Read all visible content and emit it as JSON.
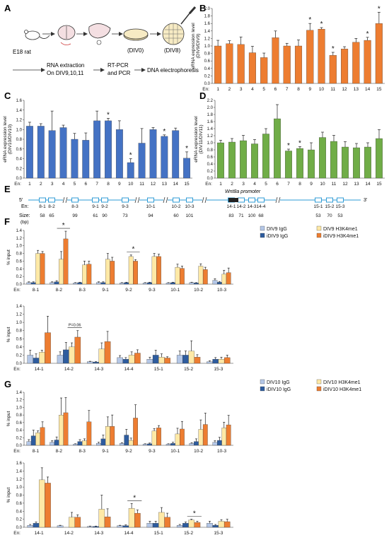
{
  "colors": {
    "orange": "#ED7D31",
    "blue": "#4472C4",
    "green": "#70AD47",
    "light_blue": "#B4C7E7",
    "dark_blue": "#2E5C9E",
    "light_yellow": "#FFE9A6",
    "enhancer_box": "#2E9BD6"
  },
  "panel_letters": [
    "A",
    "B",
    "C",
    "D",
    "E",
    "F",
    "G"
  ],
  "panel_a": {
    "labels": {
      "e18": "E18 rat",
      "div0": "(DIV0)",
      "div8": "(DIV8)",
      "rna1": "RNA extraction",
      "rna2": "On DIV9,10,11",
      "rtpcr1": "RT-PCR",
      "rtpcr2": "and PCR",
      "dna": "DNA electrophoresis"
    },
    "icons": [
      "rat-icon",
      "brain-icon",
      "cortex-icon",
      "dish-icon",
      "plate-icon",
      "pipette-icon"
    ]
  },
  "panel_e": {
    "five_prime": "5'",
    "three_prime": "3'",
    "promoter": "Wnt8a promoter",
    "en_label": "En:",
    "size_label": "Size:",
    "size_unit": "(bp)",
    "enhancers": [
      "8-1",
      "8-2",
      "8-3",
      "9-1",
      "9-2",
      "9-3",
      "10-1",
      "10-2",
      "10-3",
      "14-1",
      "14-2",
      "14-3",
      "14-4",
      "15-1",
      "15-2",
      "15-3"
    ],
    "sizes": [
      "58",
      "65",
      "99",
      "61",
      "90",
      "73",
      "94",
      "60",
      "101",
      "83",
      "71",
      "100",
      "68",
      "53",
      "70",
      "53"
    ]
  },
  "chart_data": [
    {
      "id": "B",
      "type": "bar",
      "ylabel": "eRNA expression level\n(DIV9/DIV9)",
      "ylim": [
        0,
        2.0
      ],
      "xprefix": "En:",
      "color": "orange",
      "categories": [
        "1",
        "2",
        "3",
        "4",
        "5",
        "6",
        "7",
        "8",
        "9",
        "10",
        "11",
        "12",
        "13",
        "14",
        "15"
      ],
      "values": [
        1.0,
        1.06,
        1.04,
        0.82,
        0.69,
        1.22,
        1.0,
        1.0,
        1.42,
        1.45,
        0.75,
        0.92,
        1.1,
        1.15,
        1.6
      ],
      "errors": [
        0.15,
        0.08,
        0.2,
        0.17,
        0.12,
        0.18,
        0.07,
        0.16,
        0.18,
        0.04,
        0.08,
        0.06,
        0.1,
        0.08,
        0.3
      ],
      "significant": [
        false,
        false,
        false,
        false,
        false,
        false,
        false,
        false,
        true,
        true,
        true,
        false,
        false,
        true,
        true
      ]
    },
    {
      "id": "C",
      "type": "bar",
      "ylabel": "eRNA expression level\n(DIV10/DIV10)",
      "ylim": [
        0,
        1.6
      ],
      "xprefix": "En:",
      "color": "blue",
      "categories": [
        "1",
        "2",
        "3",
        "4",
        "5",
        "6",
        "7",
        "8",
        "9",
        "10",
        "11",
        "12",
        "13",
        "14",
        "15"
      ],
      "values": [
        1.07,
        1.07,
        0.98,
        1.04,
        0.8,
        0.78,
        1.18,
        1.18,
        1.0,
        0.32,
        0.72,
        1.0,
        0.86,
        0.98,
        0.41
      ],
      "errors": [
        0.08,
        0.05,
        0.4,
        0.05,
        0.12,
        0.15,
        0.2,
        0.05,
        0.18,
        0.08,
        0.3,
        0.04,
        0.03,
        0.05,
        0.13
      ],
      "significant": [
        false,
        false,
        false,
        false,
        false,
        false,
        false,
        true,
        false,
        true,
        false,
        false,
        true,
        false,
        true
      ]
    },
    {
      "id": "D",
      "type": "bar",
      "ylabel": "eRNA expression level\n(DIV11/DIV11)",
      "ylim": [
        0,
        2.2
      ],
      "xprefix": "En:",
      "color": "green",
      "categories": [
        "1",
        "2",
        "3",
        "4",
        "5",
        "6",
        "7",
        "8",
        "9",
        "10",
        "11",
        "12",
        "13",
        "14",
        "15"
      ],
      "values": [
        1.0,
        1.02,
        1.06,
        0.97,
        1.25,
        1.68,
        0.77,
        0.84,
        0.8,
        1.15,
        1.04,
        0.88,
        0.86,
        0.88,
        1.12
      ],
      "errors": [
        0.07,
        0.1,
        0.15,
        0.12,
        0.15,
        0.4,
        0.05,
        0.05,
        0.2,
        0.15,
        0.17,
        0.15,
        0.12,
        0.12,
        0.25
      ],
      "significant": [
        false,
        false,
        false,
        false,
        false,
        false,
        true,
        true,
        false,
        false,
        false,
        false,
        false,
        false,
        false
      ]
    },
    {
      "id": "F1",
      "type": "bar",
      "ylabel": "% input",
      "ylim": [
        0,
        1.4
      ],
      "yticks": [
        0,
        0.2,
        0.4,
        0.6,
        0.8,
        1.0,
        1.2,
        1.4
      ],
      "xprefix": "En:",
      "legend": [
        "DIV9 IgG",
        "iDIV9 IgG",
        "DIV9 H3K4me1",
        "iDIV9 H3K4me1"
      ],
      "series_order_in_group": [
        "DIV9 IgG",
        "iDIV9 IgG",
        "DIV9 H3K4me1",
        "iDIV9 H3K4me1"
      ],
      "series_colors": [
        "light_blue",
        "dark_blue",
        "light_yellow",
        "orange"
      ],
      "categories": [
        "8-1",
        "8-2",
        "8-3",
        "9-1",
        "9-2",
        "9-3",
        "10-1",
        "10-2",
        "10-3"
      ],
      "series": [
        {
          "name": "DIV9 IgG",
          "values": [
            0.04,
            0.04,
            0.03,
            0.04,
            0.03,
            0.03,
            0.03,
            0.04,
            0.1
          ],
          "errors": [
            0.02,
            0.02,
            0.01,
            0.02,
            0.01,
            0.01,
            0.01,
            0.01,
            0.04
          ]
        },
        {
          "name": "iDIV9 IgG",
          "values": [
            0.04,
            0.06,
            0.04,
            0.04,
            0.04,
            0.04,
            0.04,
            0.03,
            0.05
          ],
          "errors": [
            0.02,
            0.03,
            0.01,
            0.02,
            0.01,
            0.01,
            0.01,
            0.01,
            0.02
          ]
        },
        {
          "name": "DIV9 H3K4me1",
          "values": [
            0.8,
            0.65,
            0.5,
            0.65,
            0.72,
            0.72,
            0.44,
            0.47,
            0.26
          ],
          "errors": [
            0.08,
            0.2,
            0.1,
            0.15,
            0.04,
            0.08,
            0.08,
            0.06,
            0.1
          ]
        },
        {
          "name": "iDIV9 H3K4me1",
          "values": [
            0.8,
            1.18,
            0.52,
            0.6,
            0.6,
            0.72,
            0.41,
            0.38,
            0.3
          ],
          "errors": [
            0.05,
            0.2,
            0.08,
            0.1,
            0.04,
            0.06,
            0.06,
            0.06,
            0.12
          ]
        }
      ],
      "annotations": [
        {
          "type": "star",
          "group": 1,
          "text": "*"
        },
        {
          "type": "star",
          "group": 4,
          "text": "*"
        }
      ]
    },
    {
      "id": "F2",
      "type": "bar",
      "ylabel": "% input",
      "ylim": [
        0,
        1.4
      ],
      "yticks": [
        0,
        0.2,
        0.4,
        0.6,
        0.8,
        1.0,
        1.2,
        1.4
      ],
      "xprefix": "En:",
      "series_colors": [
        "light_blue",
        "dark_blue",
        "light_yellow",
        "orange"
      ],
      "categories": [
        "14-1",
        "14-2",
        "14-3",
        "14-4",
        "15-1",
        "15-2",
        "15-3"
      ],
      "series": [
        {
          "name": "DIV9 IgG",
          "values": [
            0.2,
            0.2,
            0.04,
            0.14,
            0.1,
            0.2,
            0.04
          ],
          "errors": [
            0.12,
            0.08,
            0.01,
            0.05,
            0.05,
            0.1,
            0.02
          ]
        },
        {
          "name": "iDIV9 IgG",
          "values": [
            0.13,
            0.33,
            0.03,
            0.1,
            0.2,
            0.2,
            0.1
          ],
          "errors": [
            0.1,
            0.18,
            0.01,
            0.04,
            0.12,
            0.1,
            0.04
          ]
        },
        {
          "name": "DIV9 H3K4me1",
          "values": [
            0.27,
            0.4,
            0.35,
            0.2,
            0.15,
            0.3,
            0.1
          ],
          "errors": [
            0.05,
            0.1,
            0.15,
            0.08,
            0.08,
            0.25,
            0.05
          ]
        },
        {
          "name": "iDIV9 H3K4me1",
          "values": [
            0.75,
            0.64,
            0.53,
            0.25,
            0.13,
            0.15,
            0.14
          ],
          "errors": [
            0.4,
            0.16,
            0.25,
            0.08,
            0.03,
            0.06,
            0.06
          ]
        }
      ],
      "annotations": [
        {
          "type": "pvalue",
          "group": 1,
          "text": "P=0.06"
        }
      ]
    },
    {
      "id": "G1",
      "type": "bar",
      "ylabel": "% input",
      "ylim": [
        0,
        1.4
      ],
      "yticks": [
        0,
        0.2,
        0.4,
        0.6,
        0.8,
        1.0,
        1.2,
        1.4
      ],
      "xprefix": "En:",
      "legend": [
        "DIV10 IgG",
        "iDIV10 IgG",
        "DIV10 H3K4me1",
        "iDIV10 H3K4me1"
      ],
      "series_colors": [
        "light_blue",
        "dark_blue",
        "light_yellow",
        "orange"
      ],
      "categories": [
        "8-1",
        "8-2",
        "8-3",
        "9-1",
        "9-2",
        "9-3",
        "10-1",
        "10-2",
        "10-3"
      ],
      "series": [
        {
          "name": "DIV10 IgG",
          "values": [
            0.1,
            0.08,
            0.03,
            0.05,
            0.05,
            0.03,
            0.03,
            0.05,
            0.08
          ],
          "errors": [
            0.05,
            0.04,
            0.01,
            0.03,
            0.02,
            0.01,
            0.01,
            0.02,
            0.04
          ]
        },
        {
          "name": "iDIV10 IgG",
          "values": [
            0.25,
            0.14,
            0.1,
            0.17,
            0.27,
            0.04,
            0.05,
            0.1,
            0.13
          ],
          "errors": [
            0.15,
            0.08,
            0.05,
            0.1,
            0.15,
            0.02,
            0.03,
            0.07,
            0.08
          ]
        },
        {
          "name": "DIV10 H3K4me1",
          "values": [
            0.33,
            0.8,
            0.12,
            0.5,
            0.13,
            0.38,
            0.3,
            0.42,
            0.46
          ],
          "errors": [
            0.05,
            0.45,
            0.05,
            0.25,
            0.06,
            0.06,
            0.15,
            0.25,
            0.15
          ]
        },
        {
          "name": "iDIV10 H3K4me1",
          "values": [
            0.47,
            0.86,
            0.62,
            0.5,
            0.72,
            0.46,
            0.43,
            0.55,
            0.54
          ],
          "errors": [
            0.15,
            0.4,
            0.3,
            0.3,
            0.35,
            0.06,
            0.2,
            0.3,
            0.25
          ]
        }
      ]
    },
    {
      "id": "G2",
      "type": "bar",
      "ylabel": "% input",
      "ylim": [
        0,
        1.6
      ],
      "yticks": [
        0,
        0.2,
        0.4,
        0.6,
        0.8,
        1.0,
        1.2,
        1.4,
        1.6
      ],
      "xprefix": "En:",
      "series_colors": [
        "light_blue",
        "dark_blue",
        "light_yellow",
        "orange"
      ],
      "categories": [
        "14-1",
        "14-2",
        "14-3",
        "14-4",
        "15-1",
        "15-2",
        "15-3"
      ],
      "series": [
        {
          "name": "DIV10 IgG",
          "values": [
            0.05,
            0.04,
            0.02,
            0.04,
            0.1,
            0.05,
            0.1
          ],
          "errors": [
            0.02,
            0.01,
            0.01,
            0.01,
            0.05,
            0.02,
            0.05
          ]
        },
        {
          "name": "iDIV10 IgG",
          "values": [
            0.1,
            0.0,
            0.02,
            0.04,
            0.1,
            0.1,
            0.05
          ],
          "errors": [
            0.03,
            0.0,
            0.01,
            0.02,
            0.05,
            0.03,
            0.02
          ]
        },
        {
          "name": "DIV10 H3K4me1",
          "values": [
            1.18,
            0.25,
            0.45,
            0.47,
            0.37,
            0.18,
            0.15
          ],
          "errors": [
            0.3,
            0.12,
            0.35,
            0.12,
            0.12,
            0.02,
            0.04
          ]
        },
        {
          "name": "iDIV10 H3K4me1",
          "values": [
            1.1,
            0.25,
            0.26,
            0.35,
            0.25,
            0.12,
            0.14
          ],
          "errors": [
            0.15,
            0.06,
            0.2,
            0.08,
            0.1,
            0.03,
            0.06
          ]
        }
      ],
      "annotations": [
        {
          "type": "star",
          "group": 3,
          "text": "*"
        },
        {
          "type": "star",
          "group": 5,
          "text": "*"
        }
      ]
    }
  ]
}
